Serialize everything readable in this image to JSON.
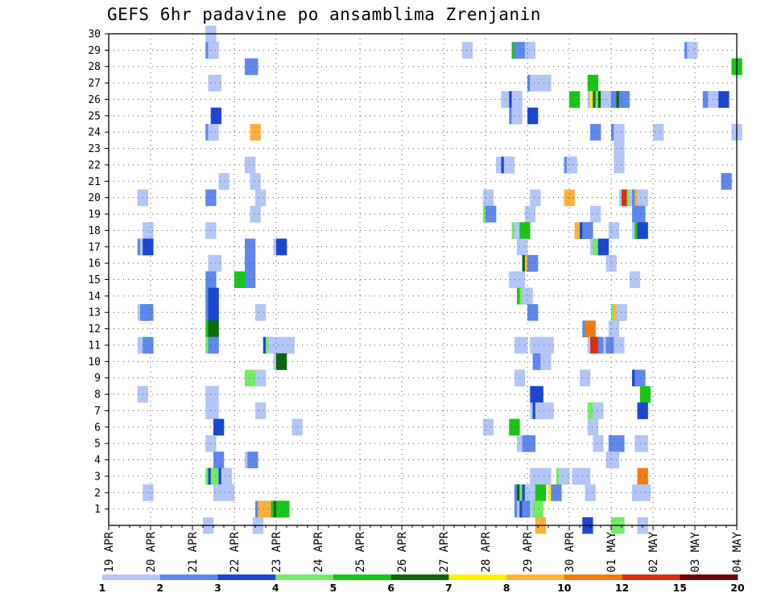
{
  "chart_data": {
    "type": "heatmap",
    "title": "GEFS 6hr padavine po ansamblima Zrenjanin",
    "xlabel": "",
    "ylabel": "",
    "x_ticks": [
      "19 APR",
      "20 APR",
      "21 APR",
      "22 APR",
      "23 APR",
      "24 APR",
      "25 APR",
      "26 APR",
      "27 APR",
      "28 APR",
      "29 APR",
      "30 APR",
      "01 MAY",
      "02 MAY",
      "03 MAY",
      "04 MAY"
    ],
    "y_ticks": [
      1,
      2,
      3,
      4,
      5,
      6,
      7,
      8,
      9,
      10,
      11,
      12,
      13,
      14,
      15,
      16,
      17,
      18,
      19,
      20,
      21,
      22,
      23,
      24,
      25,
      26,
      27,
      28,
      29,
      30
    ],
    "ylim": [
      0,
      30
    ],
    "xlim_days": [
      0,
      15
    ],
    "steps_per_day": 4,
    "grid": "dotted",
    "colorbar": {
      "labels": [
        "1",
        "2",
        "3",
        "4",
        "5",
        "6",
        "7",
        "8",
        "10",
        "12",
        "15",
        "20"
      ],
      "colors": [
        "#b3c6f7",
        "#5f87ec",
        "#1a46d2",
        "#72ec64",
        "#17c617",
        "#0b690b",
        "#fff000",
        "#ffb03a",
        "#f27b0c",
        "#dc2f0f",
        "#6e0606"
      ]
    },
    "cells": [
      [
        0,
        0,
        0,
        ""
      ],
      [
        1,
        0,
        0,
        ""
      ],
      [
        2,
        0,
        0,
        ""
      ],
      [
        3,
        0,
        0,
        ""
      ],
      [
        4,
        0,
        0,
        ""
      ],
      [
        5,
        0,
        0,
        ""
      ],
      [
        6,
        0,
        0,
        ""
      ],
      [
        7,
        0,
        0,
        ""
      ],
      [
        8,
        0,
        0,
        ""
      ],
      [
        9,
        0,
        0,
        ""
      ],
      [
        10,
        0,
        0,
        ""
      ],
      [
        11,
        0,
        0,
        ""
      ],
      [
        12,
        0,
        0,
        ""
      ],
      [
        13,
        0,
        0,
        ""
      ],
      [
        14,
        0,
        0,
        ""
      ],
      [
        15,
        0,
        0,
        ""
      ],
      [
        16,
        0,
        0,
        ""
      ],
      [
        17,
        0,
        0,
        ""
      ],
      [
        18,
        0,
        0,
        ""
      ],
      [
        19,
        0,
        0,
        ""
      ],
      [
        20,
        0,
        0,
        ""
      ],
      [
        21,
        0,
        0,
        ""
      ],
      [
        22,
        0,
        0,
        ""
      ],
      [
        23,
        0,
        0,
        ""
      ],
      [
        24,
        0,
        0,
        ""
      ],
      [
        25,
        0,
        0,
        ""
      ],
      [
        26,
        0,
        0,
        ""
      ],
      [
        27,
        0,
        0,
        ""
      ],
      [
        28,
        0,
        0,
        ""
      ],
      [
        29,
        0,
        0,
        ""
      ]
    ],
    "cell_list": [
      [
        9.25,
        30,
        1
      ],
      [
        9.25,
        29,
        2
      ],
      [
        9.5,
        29,
        1
      ],
      [
        13.0,
        28,
        2
      ],
      [
        13.25,
        28,
        2
      ],
      [
        33.75,
        29,
        1
      ],
      [
        38.5,
        29,
        5
      ],
      [
        38.75,
        29,
        2
      ],
      [
        39.5,
        29,
        2
      ],
      [
        39.75,
        29,
        1
      ],
      [
        55.0,
        29,
        2
      ],
      [
        55.25,
        29,
        1
      ],
      [
        59.5,
        28,
        5
      ],
      [
        9.5,
        27,
        1
      ],
      [
        9.75,
        27,
        1
      ],
      [
        40.0,
        27,
        2
      ],
      [
        40.25,
        27,
        1
      ],
      [
        41.25,
        27,
        1
      ],
      [
        45.75,
        27,
        5
      ],
      [
        37.5,
        26,
        1
      ],
      [
        38.25,
        26,
        3
      ],
      [
        38.5,
        26,
        1
      ],
      [
        44.0,
        26,
        5
      ],
      [
        45.75,
        26,
        1
      ],
      [
        46.0,
        26,
        7
      ],
      [
        46.25,
        26,
        6
      ],
      [
        46.5,
        26,
        4
      ],
      [
        46.75,
        26,
        6
      ],
      [
        47.0,
        26,
        1
      ],
      [
        47.25,
        26,
        1
      ],
      [
        48.0,
        26,
        2
      ],
      [
        48.25,
        26,
        2
      ],
      [
        48.5,
        26,
        6
      ],
      [
        48.75,
        26,
        2
      ],
      [
        56.75,
        26,
        2
      ],
      [
        57.0,
        26,
        2
      ],
      [
        57.25,
        26,
        1
      ],
      [
        57.5,
        26,
        1
      ],
      [
        58.25,
        26,
        3
      ],
      [
        9.75,
        25,
        3
      ],
      [
        38.25,
        25,
        2
      ],
      [
        38.5,
        25,
        1
      ],
      [
        40.0,
        25,
        3
      ],
      [
        9.25,
        24,
        2
      ],
      [
        9.5,
        24,
        1
      ],
      [
        13.5,
        24,
        8
      ],
      [
        46.0,
        24,
        2
      ],
      [
        48.0,
        24,
        2
      ],
      [
        48.25,
        24,
        1
      ],
      [
        52.0,
        24,
        1
      ],
      [
        59.5,
        24,
        1
      ],
      [
        48.25,
        23,
        1
      ],
      [
        48.25,
        22,
        1
      ],
      [
        13.0,
        22,
        1
      ],
      [
        37.0,
        22,
        1
      ],
      [
        37.5,
        22,
        3
      ],
      [
        37.75,
        22,
        1
      ],
      [
        43.5,
        22,
        2
      ],
      [
        43.75,
        22,
        1
      ],
      [
        10.5,
        21,
        1
      ],
      [
        13.5,
        21,
        1
      ],
      [
        58.5,
        21,
        2
      ],
      [
        2.75,
        20,
        1
      ],
      [
        9.25,
        20,
        2
      ],
      [
        14.0,
        20,
        1
      ],
      [
        35.75,
        20,
        1
      ],
      [
        40.25,
        20,
        1
      ],
      [
        43.5,
        20,
        8
      ],
      [
        48.75,
        20,
        1
      ],
      [
        49.0,
        20,
        10
      ],
      [
        49.25,
        20,
        10
      ],
      [
        49.5,
        20,
        4
      ],
      [
        49.75,
        20,
        1
      ],
      [
        50.0,
        20,
        2
      ],
      [
        50.25,
        20,
        8
      ],
      [
        50.5,
        20,
        1
      ],
      [
        13.5,
        19,
        1
      ],
      [
        35.75,
        19,
        4
      ],
      [
        36.0,
        19,
        2
      ],
      [
        39.75,
        19,
        1
      ],
      [
        46.0,
        19,
        1
      ],
      [
        50.0,
        19,
        2
      ],
      [
        50.25,
        19,
        2
      ],
      [
        3.25,
        18,
        1
      ],
      [
        9.25,
        18,
        1
      ],
      [
        38.5,
        18,
        4
      ],
      [
        38.75,
        18,
        1
      ],
      [
        39.0,
        18,
        1
      ],
      [
        39.25,
        18,
        5
      ],
      [
        44.5,
        18,
        8
      ],
      [
        45.0,
        18,
        3
      ],
      [
        45.25,
        18,
        2
      ],
      [
        47.75,
        18,
        1
      ],
      [
        50.0,
        18,
        1
      ],
      [
        50.25,
        18,
        5
      ],
      [
        50.5,
        18,
        3
      ],
      [
        2.75,
        17,
        2
      ],
      [
        3.0,
        17,
        1
      ],
      [
        3.25,
        17,
        3
      ],
      [
        13.0,
        17,
        2
      ],
      [
        15.75,
        17,
        1
      ],
      [
        16.0,
        17,
        3
      ],
      [
        39.0,
        17,
        1
      ],
      [
        46.0,
        17,
        1
      ],
      [
        46.25,
        17,
        4
      ],
      [
        46.5,
        17,
        4
      ],
      [
        46.75,
        17,
        3
      ],
      [
        9.5,
        16,
        1
      ],
      [
        9.75,
        16,
        1
      ],
      [
        13.0,
        16,
        2
      ],
      [
        39.5,
        16,
        6
      ],
      [
        39.75,
        16,
        8
      ],
      [
        40.0,
        16,
        2
      ],
      [
        47.5,
        16,
        1
      ],
      [
        9.25,
        15,
        2
      ],
      [
        12.0,
        15,
        5
      ],
      [
        13.0,
        15,
        2
      ],
      [
        38.25,
        15,
        1
      ],
      [
        38.75,
        15,
        1
      ],
      [
        49.75,
        15,
        1
      ],
      [
        9.25,
        14,
        2
      ],
      [
        9.5,
        14,
        3
      ],
      [
        39.0,
        14,
        5
      ],
      [
        39.25,
        14,
        4
      ],
      [
        39.5,
        14,
        1
      ],
      [
        2.75,
        13,
        1
      ],
      [
        3.0,
        13,
        2
      ],
      [
        3.25,
        13,
        2
      ],
      [
        9.25,
        13,
        2
      ],
      [
        9.5,
        13,
        3
      ],
      [
        14.0,
        13,
        1
      ],
      [
        40.0,
        13,
        2
      ],
      [
        48.0,
        13,
        4
      ],
      [
        48.25,
        13,
        8
      ],
      [
        48.5,
        13,
        1
      ],
      [
        9.25,
        12,
        5
      ],
      [
        9.5,
        12,
        6
      ],
      [
        45.25,
        12,
        2
      ],
      [
        45.5,
        12,
        9
      ],
      [
        47.75,
        12,
        1
      ],
      [
        2.75,
        11,
        1
      ],
      [
        3.0,
        11,
        1
      ],
      [
        3.25,
        11,
        2
      ],
      [
        9.25,
        11,
        4
      ],
      [
        9.5,
        11,
        2
      ],
      [
        14.75,
        11,
        3
      ],
      [
        15.0,
        11,
        4
      ],
      [
        15.25,
        11,
        1
      ],
      [
        16.25,
        11,
        1
      ],
      [
        16.5,
        11,
        1
      ],
      [
        16.75,
        11,
        1
      ],
      [
        38.75,
        11,
        1
      ],
      [
        39.0,
        11,
        1
      ],
      [
        40.25,
        11,
        1
      ],
      [
        40.5,
        11,
        1
      ],
      [
        40.75,
        11,
        1
      ],
      [
        41.0,
        11,
        1
      ],
      [
        41.5,
        11,
        1
      ],
      [
        45.75,
        11,
        1
      ],
      [
        46.0,
        11,
        10
      ],
      [
        46.75,
        11,
        2
      ],
      [
        47.25,
        11,
        1
      ],
      [
        47.5,
        11,
        2
      ],
      [
        48.25,
        11,
        1
      ],
      [
        15.75,
        10,
        1
      ],
      [
        16.0,
        10,
        6
      ],
      [
        40.5,
        10,
        2
      ],
      [
        41.25,
        10,
        1
      ],
      [
        13.0,
        9,
        4
      ],
      [
        14.0,
        9,
        1
      ],
      [
        38.75,
        9,
        1
      ],
      [
        45.0,
        9,
        1
      ],
      [
        50.0,
        9,
        3
      ],
      [
        50.25,
        9,
        2
      ],
      [
        2.75,
        8,
        1
      ],
      [
        9.25,
        8,
        1
      ],
      [
        9.5,
        8,
        1
      ],
      [
        40.25,
        8,
        3
      ],
      [
        40.5,
        8,
        3
      ],
      [
        50.75,
        8,
        5
      ],
      [
        9.25,
        7,
        1
      ],
      [
        9.5,
        7,
        1
      ],
      [
        14.0,
        7,
        1
      ],
      [
        40.25,
        7,
        1
      ],
      [
        40.5,
        7,
        3
      ],
      [
        40.75,
        7,
        1
      ],
      [
        41.5,
        7,
        1
      ],
      [
        45.75,
        7,
        4
      ],
      [
        46.0,
        7,
        4
      ],
      [
        46.25,
        7,
        1
      ],
      [
        50.5,
        7,
        3
      ],
      [
        10.0,
        6,
        3
      ],
      [
        17.5,
        6,
        1
      ],
      [
        35.75,
        6,
        1
      ],
      [
        38.25,
        6,
        5
      ],
      [
        45.75,
        6,
        1
      ],
      [
        9.25,
        5,
        1
      ],
      [
        39.0,
        5,
        1
      ],
      [
        39.25,
        5,
        1
      ],
      [
        39.5,
        5,
        2
      ],
      [
        39.75,
        5,
        2
      ],
      [
        46.25,
        5,
        1
      ],
      [
        47.75,
        5,
        2
      ],
      [
        48.0,
        5,
        2
      ],
      [
        48.25,
        5,
        2
      ],
      [
        50.25,
        5,
        1
      ],
      [
        50.5,
        5,
        1
      ],
      [
        10.0,
        4,
        2
      ],
      [
        13.0,
        4,
        1
      ],
      [
        13.25,
        4,
        2
      ],
      [
        47.5,
        4,
        1
      ],
      [
        47.75,
        4,
        1
      ],
      [
        9.25,
        3,
        4
      ],
      [
        9.5,
        3,
        3
      ],
      [
        9.75,
        3,
        4
      ],
      [
        10.5,
        3,
        3
      ],
      [
        10.75,
        3,
        1
      ],
      [
        40.25,
        3,
        1
      ],
      [
        41.25,
        3,
        1
      ],
      [
        42.75,
        3,
        4
      ],
      [
        43.0,
        3,
        1
      ],
      [
        44.25,
        3,
        1
      ],
      [
        44.5,
        3,
        1
      ],
      [
        44.75,
        3,
        1
      ],
      [
        45.0,
        3,
        1
      ],
      [
        50.5,
        3,
        9
      ],
      [
        3.25,
        2,
        1
      ],
      [
        10.0,
        2,
        1
      ],
      [
        11.0,
        2,
        1
      ],
      [
        38.75,
        2,
        2
      ],
      [
        39.0,
        2,
        6
      ],
      [
        39.25,
        2,
        4
      ],
      [
        39.5,
        2,
        3
      ],
      [
        39.75,
        2,
        1
      ],
      [
        40.25,
        2,
        1
      ],
      [
        40.75,
        2,
        5
      ],
      [
        42.0,
        2,
        7
      ],
      [
        42.25,
        2,
        2
      ],
      [
        45.5,
        2,
        1
      ],
      [
        50.0,
        2,
        1
      ],
      [
        50.75,
        2,
        1
      ],
      [
        14.0,
        1,
        2
      ],
      [
        14.25,
        1,
        8
      ],
      [
        14.5,
        1,
        8
      ],
      [
        15.5,
        1,
        5
      ],
      [
        15.75,
        1,
        6
      ],
      [
        16.0,
        1,
        5
      ],
      [
        16.25,
        1,
        5
      ],
      [
        38.75,
        1,
        2
      ],
      [
        39.0,
        1,
        1
      ],
      [
        39.25,
        1,
        3
      ],
      [
        39.5,
        1,
        2
      ],
      [
        40.25,
        1,
        1
      ],
      [
        40.5,
        1,
        4
      ],
      [
        9.0,
        0,
        1
      ],
      [
        13.75,
        0,
        1
      ],
      [
        40.75,
        0,
        8
      ],
      [
        45.25,
        0,
        3
      ],
      [
        48.0,
        0,
        4
      ],
      [
        48.25,
        0,
        4
      ],
      [
        50.5,
        0,
        1
      ]
    ]
  }
}
